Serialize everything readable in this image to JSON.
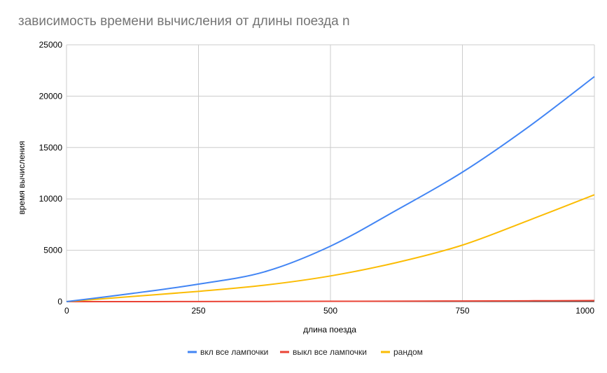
{
  "chart_data": {
    "type": "line",
    "title": "зависимость времени вычисления от длины поезда n",
    "xlabel": "длина поезда",
    "ylabel": "время вычисления",
    "xlim": [
      0,
      1000
    ],
    "ylim": [
      0,
      25000
    ],
    "x_ticks": [
      "0",
      "250",
      "500",
      "750",
      "1000"
    ],
    "y_ticks": [
      "0",
      "5000",
      "10000",
      "15000",
      "20000",
      "25000"
    ],
    "grid": true,
    "legend_position": "bottom",
    "x": [
      0,
      125,
      250,
      375,
      500,
      625,
      750,
      875,
      1000
    ],
    "series": [
      {
        "name": "вкл все лампочки",
        "color": "#4285f4",
        "values": [
          0,
          800,
          1700,
          2900,
          5400,
          8900,
          12600,
          17000,
          21900
        ]
      },
      {
        "name": "выкл все лампочки",
        "color": "#ea4335",
        "values": [
          0,
          2,
          8,
          20,
          30,
          45,
          60,
          80,
          100
        ]
      },
      {
        "name": "рандом",
        "color": "#fbbc04",
        "values": [
          0,
          500,
          1000,
          1600,
          2500,
          3800,
          5500,
          7900,
          10400
        ]
      }
    ]
  }
}
